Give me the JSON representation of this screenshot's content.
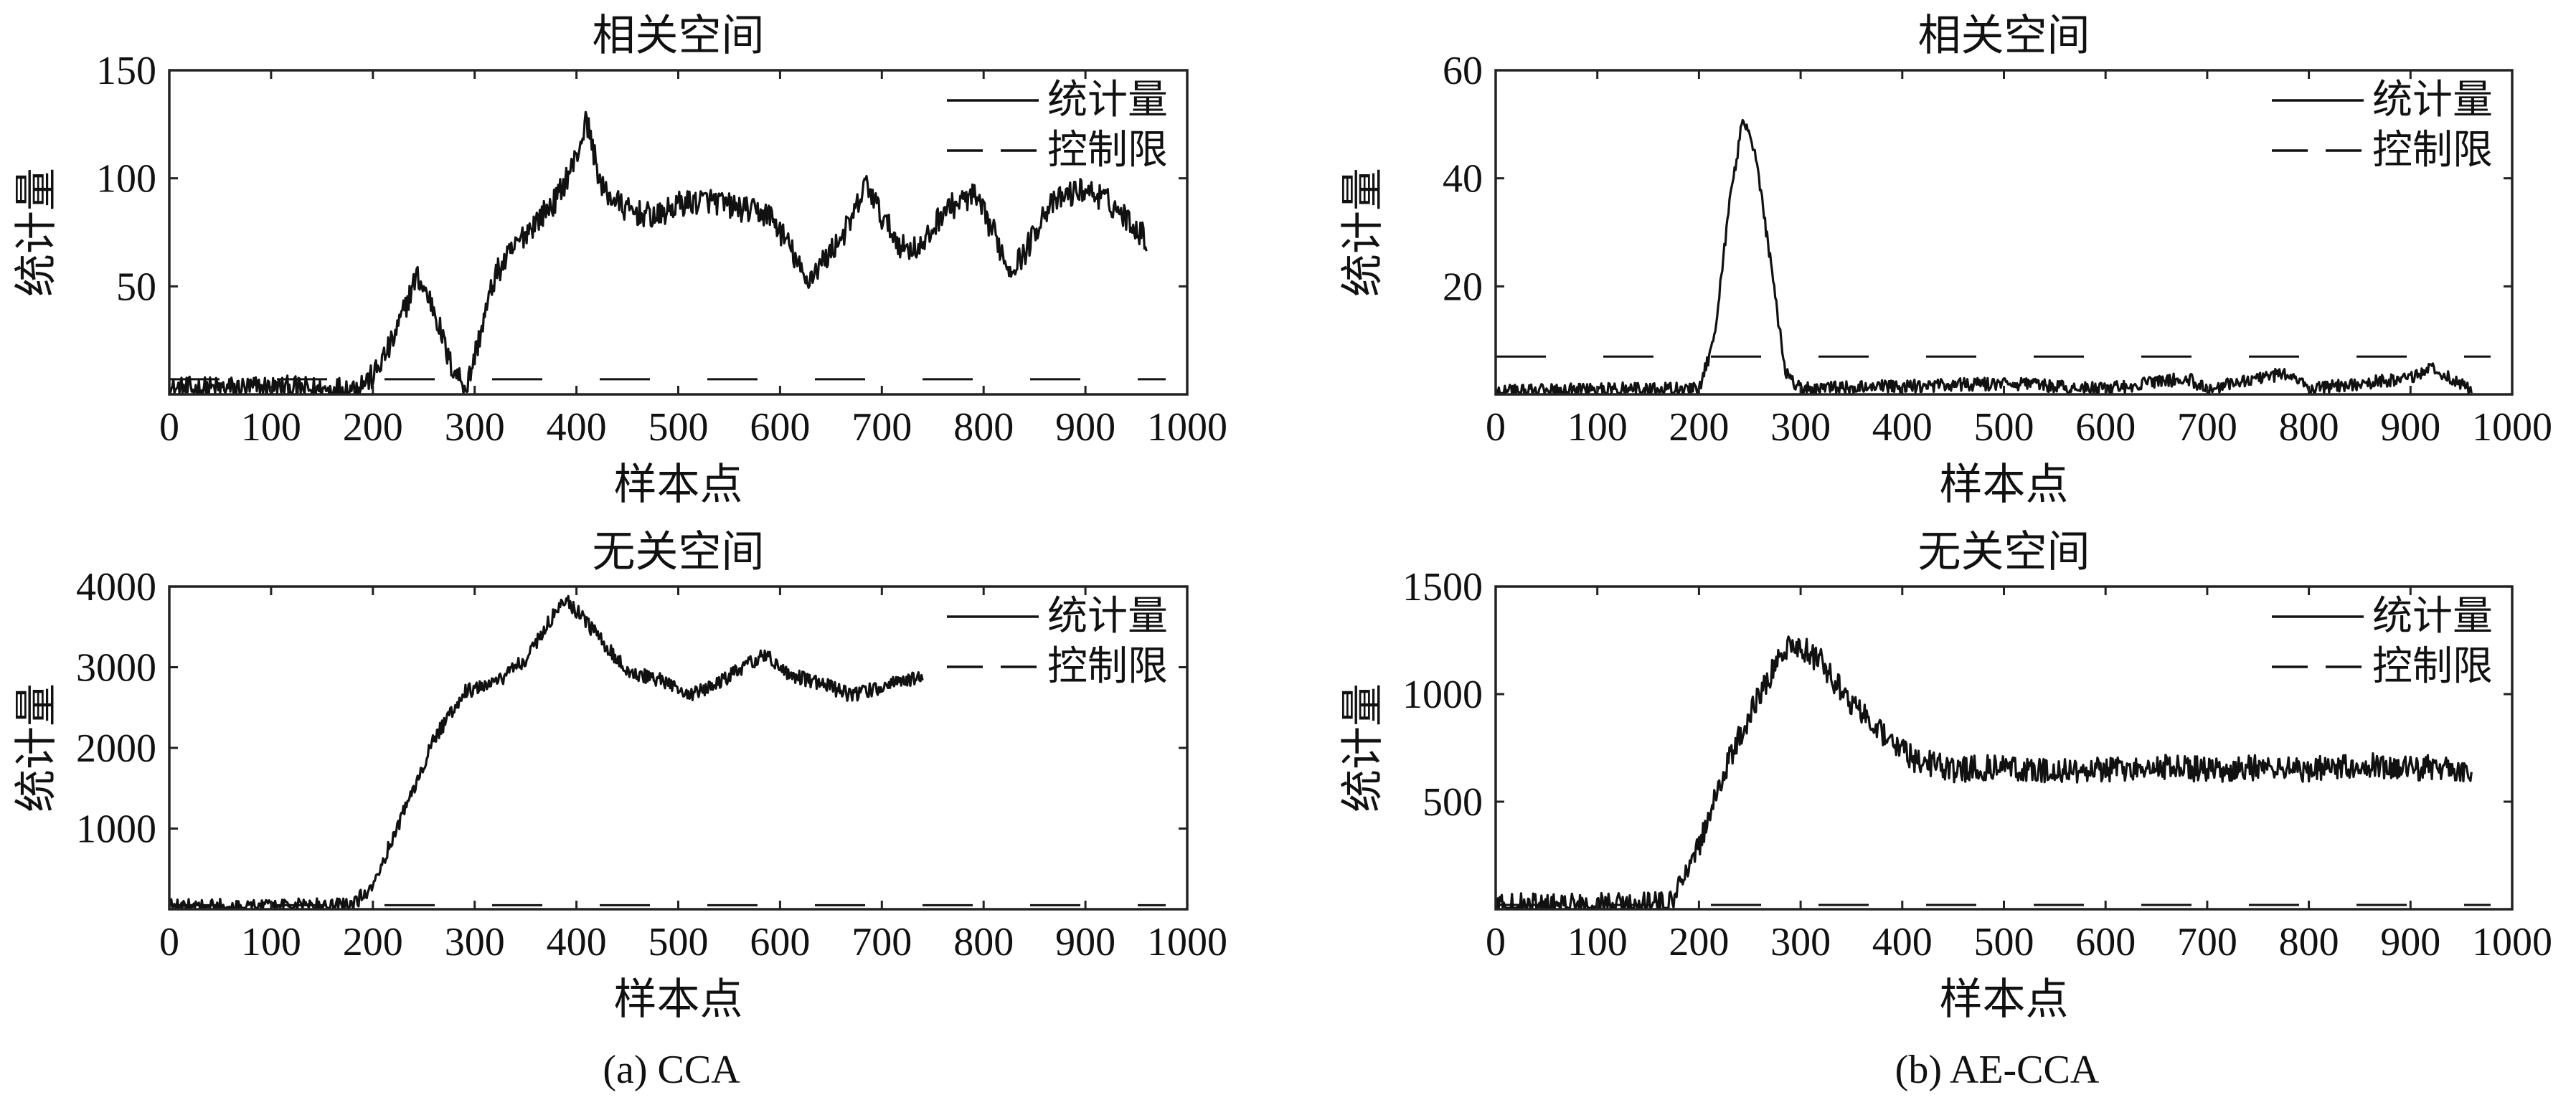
{
  "figure": {
    "caption_a": "(a) CCA",
    "caption_b": "(b) AE-CCA"
  },
  "chart_data": [
    {
      "id": "cca-related",
      "type": "line",
      "title": "相关空间",
      "xlabel": "样本点",
      "ylabel": "统计量",
      "xlim": [
        0,
        1000
      ],
      "ylim": [
        0,
        150
      ],
      "xticks": [
        "0",
        "100",
        "200",
        "300",
        "400",
        "500",
        "600",
        "700",
        "800",
        "900",
        "1000"
      ],
      "yticks": [
        "50",
        "100",
        "150"
      ],
      "ytick_values": [
        50,
        100,
        150
      ],
      "legend": [
        "统计量",
        "控制限"
      ],
      "legend_position": "top-right",
      "control_limit": 7,
      "series": [
        {
          "name": "统计量",
          "line": "solid",
          "noise": 6,
          "x": [
            0,
            100,
            150,
            180,
            200,
            220,
            243,
            260,
            275,
            292,
            320,
            350,
            380,
            400,
            410,
            425,
            450,
            480,
            500,
            530,
            560,
            590,
            610,
            625,
            650,
            670,
            685,
            700,
            720,
            740,
            760,
            790,
            810,
            825,
            840,
            860,
            880,
            900,
            920,
            940,
            960
          ],
          "y": [
            2,
            3,
            2,
            3,
            8,
            25,
            55,
            40,
            15,
            3,
            55,
            75,
            90,
            110,
            127,
            95,
            85,
            82,
            88,
            90,
            86,
            83,
            68,
            52,
            66,
            80,
            98,
            82,
            68,
            68,
            85,
            92,
            75,
            58,
            65,
            85,
            92,
            95,
            90,
            82,
            72
          ]
        }
      ]
    },
    {
      "id": "cca-unrelated",
      "type": "line",
      "title": "无关空间",
      "xlabel": "样本点",
      "ylabel": "统计量",
      "xlim": [
        0,
        1000
      ],
      "ylim": [
        0,
        4000
      ],
      "xticks": [
        "0",
        "100",
        "200",
        "300",
        "400",
        "500",
        "600",
        "700",
        "800",
        "900",
        "1000"
      ],
      "yticks": [
        "1000",
        "2000",
        "3000",
        "4000"
      ],
      "ytick_values": [
        1000,
        2000,
        3000,
        4000
      ],
      "legend": [
        "统计量",
        "控制限"
      ],
      "legend_position": "top-right",
      "control_limit": 50,
      "series": [
        {
          "name": "统计量",
          "line": "solid",
          "noise": 90,
          "x": [
            0,
            100,
            180,
            200,
            230,
            260,
            290,
            320,
            350,
            380,
            390,
            420,
            450,
            480,
            510,
            540,
            570,
            585,
            610,
            640,
            670,
            700,
            740
          ],
          "y": [
            40,
            40,
            50,
            300,
            1200,
            2100,
            2700,
            2800,
            3100,
            3700,
            3850,
            3400,
            2950,
            2850,
            2650,
            2800,
            3050,
            3150,
            2900,
            2800,
            2650,
            2750,
            2900
          ]
        }
      ]
    },
    {
      "id": "aecca-related",
      "type": "line",
      "title": "相关空间",
      "xlabel": "样本点",
      "ylabel": "统计量",
      "xlim": [
        0,
        1000
      ],
      "ylim": [
        0,
        60
      ],
      "xticks": [
        "0",
        "100",
        "200",
        "300",
        "400",
        "500",
        "600",
        "700",
        "800",
        "900",
        "1000"
      ],
      "yticks": [
        "20",
        "40",
        "60"
      ],
      "ytick_values": [
        20,
        40,
        60
      ],
      "legend": [
        "统计量",
        "控制限"
      ],
      "legend_position": "top-right",
      "control_limit": 7,
      "series": [
        {
          "name": "统计量",
          "line": "solid",
          "noise": 1.2,
          "x": [
            0,
            100,
            200,
            215,
            230,
            243,
            255,
            270,
            285,
            300,
            400,
            500,
            600,
            680,
            700,
            780,
            800,
            900,
            920,
            950,
            960
          ],
          "y": [
            0.5,
            1,
            1,
            10,
            35,
            51,
            45,
            25,
            4,
            1,
            1.5,
            2,
            1,
            3,
            1,
            4,
            1,
            3,
            5,
            2,
            0.5
          ]
        }
      ]
    },
    {
      "id": "aecca-unrelated",
      "type": "line",
      "title": "无关空间",
      "xlabel": "样本点",
      "ylabel": "统计量",
      "xlim": [
        0,
        1000
      ],
      "ylim": [
        0,
        1500
      ],
      "xticks": [
        "0",
        "100",
        "200",
        "300",
        "400",
        "500",
        "600",
        "700",
        "800",
        "900",
        "1000"
      ],
      "yticks": [
        "500",
        "1000",
        "1500"
      ],
      "ytick_values": [
        500,
        1000,
        1500
      ],
      "legend": [
        "统计量",
        "控制限"
      ],
      "legend_position": "top-right",
      "control_limit": 20,
      "series": [
        {
          "name": "统计量",
          "line": "solid",
          "noise": 60,
          "x": [
            0,
            100,
            170,
            200,
            230,
            260,
            290,
            320,
            350,
            380,
            410,
            450,
            500,
            550,
            600,
            650,
            700,
            750,
            800,
            850,
            900,
            950,
            960
          ],
          "y": [
            15,
            15,
            20,
            300,
            700,
            1000,
            1250,
            1150,
            950,
            820,
            700,
            650,
            660,
            640,
            650,
            660,
            650,
            660,
            650,
            670,
            660,
            650,
            640
          ]
        }
      ]
    }
  ]
}
